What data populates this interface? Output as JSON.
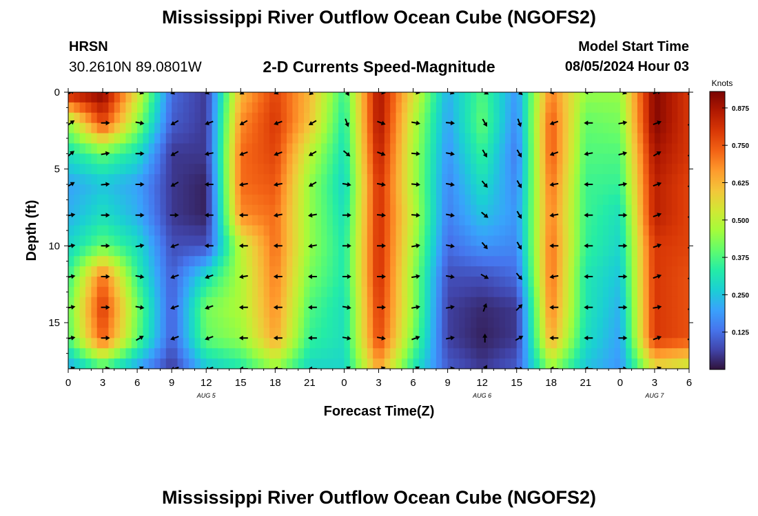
{
  "header": {
    "title": "Mississippi River Outflow Ocean Cube (NGOFS2)",
    "station": "HRSN",
    "coords": "30.2610N  89.0801W",
    "subtitle": "2-D Currents Speed-Magnitude",
    "model_start_label": "Model Start Time",
    "model_start_value": "08/05/2024 Hour 03"
  },
  "footer": {
    "title": "Mississippi River Outflow Ocean Cube (NGOFS2)"
  },
  "colors": {
    "colormap": [
      "#30123b",
      "#4145ab",
      "#4675ed",
      "#39a2fc",
      "#1bcfd4",
      "#24eca6",
      "#61fc6c",
      "#a4fc3b",
      "#d1e834",
      "#f3c63a",
      "#fe9b2d",
      "#f36315",
      "#d93806",
      "#b11901",
      "#7a0402"
    ],
    "arrow": "#000000"
  },
  "chart_data": {
    "type": "heatmap",
    "xlabel": "Forecast Time(Z)",
    "ylabel": "Depth (ft)",
    "x_ticks": [
      "0",
      "3",
      "6",
      "9",
      "12",
      "15",
      "18",
      "21",
      "0",
      "3",
      "6",
      "9",
      "12",
      "15",
      "18",
      "21",
      "0",
      "3",
      "6"
    ],
    "x_tick_hours": [
      0,
      3,
      6,
      9,
      12,
      15,
      18,
      21,
      24,
      27,
      30,
      33,
      36,
      39,
      42,
      45,
      48,
      51,
      54
    ],
    "xlim_hours": [
      0,
      54
    ],
    "date_labels": [
      {
        "text": "AUG 5",
        "hour": 12
      },
      {
        "text": "AUG 6",
        "hour": 36
      },
      {
        "text": "AUG 7",
        "hour": 51
      }
    ],
    "y_ticks": [
      "0",
      "5",
      "10",
      "15"
    ],
    "y_tick_values": [
      0,
      5,
      10,
      15
    ],
    "ylim_ft": [
      0,
      18
    ],
    "y_inverted": true,
    "colorbar": {
      "label": "Knots",
      "ticks": [
        "0.125",
        "0.250",
        "0.375",
        "0.500",
        "0.625",
        "0.750",
        "0.875"
      ],
      "tick_values": [
        0.125,
        0.25,
        0.375,
        0.5,
        0.625,
        0.75,
        0.875
      ],
      "range": [
        0.0,
        0.93
      ]
    },
    "grid_time_hours": [
      0,
      3,
      6,
      9,
      12,
      15,
      18,
      21,
      24,
      27,
      30,
      33,
      36,
      39,
      42,
      45,
      48,
      51,
      54
    ],
    "grid_depth_ft": [
      0,
      2,
      4,
      6,
      8,
      10,
      12,
      14,
      16,
      18
    ],
    "speed_knots": [
      [
        0.85,
        0.92,
        0.55,
        0.12,
        0.05,
        0.62,
        0.78,
        0.62,
        0.35,
        0.88,
        0.55,
        0.22,
        0.38,
        0.18,
        0.7,
        0.45,
        0.45,
        0.92,
        0.8
      ],
      [
        0.45,
        0.78,
        0.45,
        0.1,
        0.05,
        0.68,
        0.8,
        0.6,
        0.32,
        0.88,
        0.5,
        0.2,
        0.4,
        0.16,
        0.75,
        0.4,
        0.42,
        0.92,
        0.8
      ],
      [
        0.3,
        0.4,
        0.3,
        0.05,
        0.05,
        0.72,
        0.78,
        0.5,
        0.3,
        0.85,
        0.48,
        0.18,
        0.35,
        0.14,
        0.75,
        0.38,
        0.38,
        0.88,
        0.8
      ],
      [
        0.2,
        0.25,
        0.2,
        0.05,
        0.02,
        0.72,
        0.75,
        0.45,
        0.28,
        0.82,
        0.48,
        0.16,
        0.3,
        0.16,
        0.72,
        0.36,
        0.35,
        0.85,
        0.78
      ],
      [
        0.22,
        0.3,
        0.22,
        0.05,
        0.02,
        0.68,
        0.72,
        0.45,
        0.3,
        0.82,
        0.5,
        0.15,
        0.25,
        0.18,
        0.7,
        0.36,
        0.3,
        0.85,
        0.78
      ],
      [
        0.28,
        0.4,
        0.3,
        0.08,
        0.08,
        0.5,
        0.72,
        0.45,
        0.32,
        0.82,
        0.48,
        0.12,
        0.18,
        0.16,
        0.72,
        0.35,
        0.28,
        0.8,
        0.78
      ],
      [
        0.35,
        0.72,
        0.35,
        0.1,
        0.3,
        0.48,
        0.7,
        0.42,
        0.32,
        0.82,
        0.45,
        0.08,
        0.08,
        0.12,
        0.72,
        0.32,
        0.25,
        0.8,
        0.76
      ],
      [
        0.4,
        0.8,
        0.42,
        0.1,
        0.42,
        0.48,
        0.68,
        0.38,
        0.3,
        0.8,
        0.45,
        0.06,
        0.03,
        0.05,
        0.7,
        0.32,
        0.22,
        0.8,
        0.76
      ],
      [
        0.38,
        0.75,
        0.4,
        0.1,
        0.4,
        0.45,
        0.65,
        0.35,
        0.3,
        0.78,
        0.42,
        0.06,
        0.02,
        0.05,
        0.65,
        0.3,
        0.2,
        0.8,
        0.76
      ],
      [
        0.2,
        0.35,
        0.2,
        0.05,
        0.25,
        0.32,
        0.45,
        0.28,
        0.28,
        0.65,
        0.32,
        0.1,
        0.05,
        0.1,
        0.45,
        0.25,
        0.18,
        0.55,
        0.5
      ]
    ],
    "vector_times_hours": [
      0,
      3,
      6,
      9,
      12,
      15,
      18,
      21,
      24,
      27,
      30,
      33,
      36,
      39,
      42,
      45,
      48,
      51,
      54
    ],
    "vector_depths_ft": [
      0,
      2,
      4,
      6,
      8,
      10,
      12,
      14,
      16,
      18
    ],
    "vector_direction_deg": [
      [
        60,
        90,
        110,
        250,
        250,
        240,
        245,
        230,
        150,
        100,
        100,
        110,
        120,
        130,
        260,
        270,
        110,
        70,
        60
      ],
      [
        55,
        90,
        100,
        240,
        250,
        240,
        250,
        240,
        160,
        110,
        100,
        95,
        150,
        160,
        250,
        270,
        80,
        70,
        60
      ],
      [
        50,
        80,
        90,
        240,
        260,
        250,
        250,
        240,
        130,
        110,
        95,
        100,
        150,
        150,
        250,
        260,
        75,
        60,
        60
      ],
      [
        60,
        85,
        90,
        240,
        270,
        260,
        260,
        240,
        100,
        100,
        95,
        100,
        140,
        150,
        260,
        270,
        80,
        70,
        60
      ],
      [
        80,
        90,
        90,
        90,
        270,
        270,
        260,
        260,
        90,
        95,
        95,
        100,
        130,
        150,
        260,
        270,
        90,
        70,
        60
      ],
      [
        80,
        90,
        80,
        250,
        270,
        270,
        270,
        260,
        90,
        90,
        80,
        100,
        140,
        150,
        270,
        270,
        90,
        70,
        60
      ],
      [
        80,
        90,
        100,
        250,
        250,
        260,
        270,
        270,
        90,
        90,
        80,
        100,
        120,
        140,
        260,
        270,
        90,
        70,
        60
      ],
      [
        80,
        90,
        100,
        250,
        250,
        270,
        270,
        270,
        100,
        90,
        80,
        80,
        20,
        45,
        270,
        270,
        90,
        80,
        60
      ],
      [
        80,
        90,
        60,
        250,
        250,
        270,
        270,
        270,
        100,
        100,
        70,
        80,
        0,
        60,
        270,
        270,
        90,
        70,
        70
      ],
      [
        70,
        80,
        60,
        250,
        250,
        270,
        270,
        270,
        60,
        70,
        60,
        80,
        30,
        100,
        270,
        270,
        90,
        70,
        60
      ]
    ]
  }
}
